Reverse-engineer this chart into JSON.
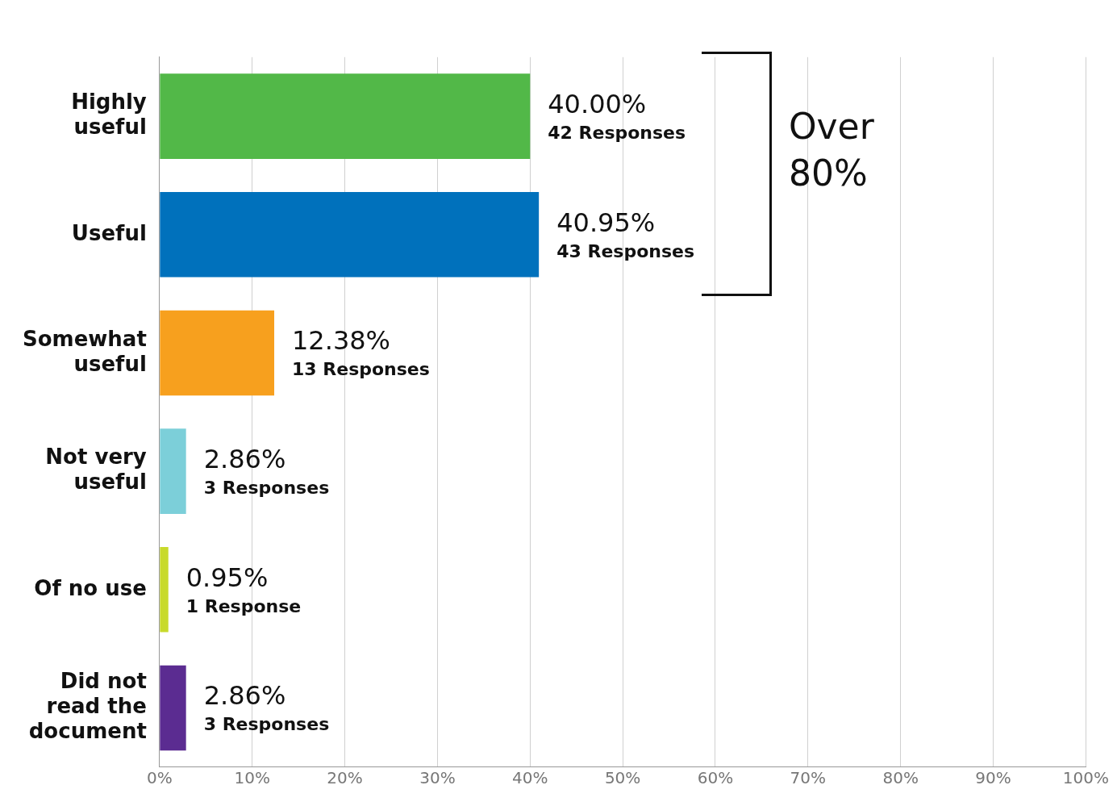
{
  "chart_data": {
    "type": "bar",
    "orientation": "horizontal",
    "categories": [
      "Highly useful",
      "Useful",
      "Somewhat useful",
      "Not very useful",
      "Of no use",
      "Did not read the document"
    ],
    "values": [
      40.0,
      40.95,
      12.38,
      2.86,
      0.95,
      2.86
    ],
    "colors": [
      "#52b848",
      "#0071bc",
      "#f7a01e",
      "#7ccfd9",
      "#c8da2b",
      "#5b2c91"
    ],
    "value_labels": [
      "40.00%\n42 Responses",
      "40.95%\n43 Responses",
      "12.38%\n13 Responses",
      "2.86%\n3 Responses",
      "0.95%\n1 Response",
      "2.86%\n3 Responses"
    ],
    "xlim": [
      0,
      100
    ],
    "xticks": [
      {
        "value": 0,
        "label": "0%"
      },
      {
        "value": 10,
        "label": "10%"
      },
      {
        "value": 20,
        "label": "20%"
      },
      {
        "value": 30,
        "label": "30%"
      },
      {
        "value": 40,
        "label": "40%"
      },
      {
        "value": 50,
        "label": "50%"
      },
      {
        "value": 60,
        "label": "60%"
      },
      {
        "value": 70,
        "label": "70%"
      },
      {
        "value": 80,
        "label": "80%"
      },
      {
        "value": 90,
        "label": "90%"
      },
      {
        "value": 100,
        "label": "100%"
      }
    ],
    "annotations": [
      "Over 80%"
    ],
    "grid": "x",
    "legend": false
  }
}
